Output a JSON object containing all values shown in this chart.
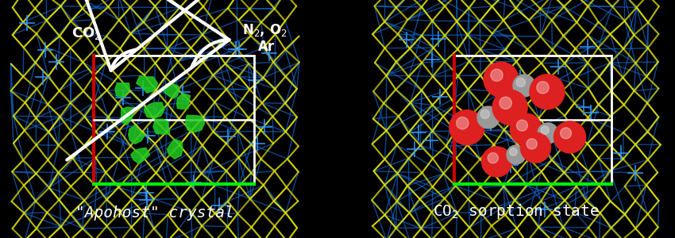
{
  "background_color": "#000000",
  "fig_width": 8.5,
  "fig_height": 3.0,
  "dpi": 100,
  "left_label": "\"Apohost\" crystal",
  "right_label": "CO$_2$ sorption state",
  "left_annotation1": "CO$_2$",
  "left_annotation2": "N$_2$, O$_2$",
  "left_annotation3": "Ar",
  "label_fontsize": 14,
  "label_color": "#ffffff",
  "annotation_fontsize": 12
}
